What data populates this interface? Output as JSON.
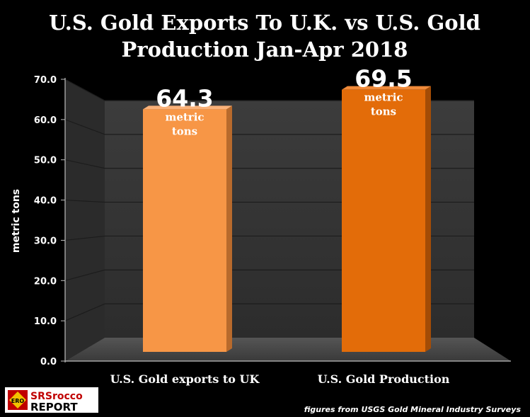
{
  "chart_data": {
    "type": "bar",
    "title_line1": "U.S. Gold Exports To U.K. vs U.S. Gold",
    "title_line2": "Production Jan-Apr 2018",
    "ylabel": "metric tons",
    "ylim": [
      0,
      70
    ],
    "yticks": [
      "0.0",
      "10.0",
      "20.0",
      "30.0",
      "40.0",
      "50.0",
      "60.0",
      "70.0"
    ],
    "categories": [
      "U.S. Gold exports to UK",
      "U.S. Gold Production"
    ],
    "values": [
      64.3,
      69.5
    ],
    "value_labels": [
      "64.3",
      "69.5"
    ],
    "unit_line1": "metric",
    "unit_line2": "tons",
    "bar_colors": [
      "#f79646",
      "#e36c09"
    ],
    "grid": true,
    "source": "figures from USGS Gold Mineral Industry Surveys"
  },
  "logo": {
    "line1": "SRSrocco",
    "line2": "REPORT",
    "badge": "ERO"
  },
  "colors": {
    "background": "#000000",
    "text": "#ffffff",
    "wall": "#3a3a3a",
    "side_wall": "#2a2a2a",
    "floor": "#4a4a4a"
  }
}
